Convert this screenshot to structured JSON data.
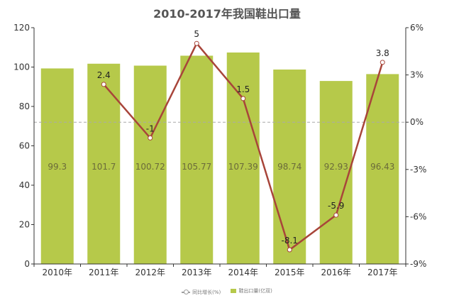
{
  "chart_data": {
    "type": "bar",
    "title": "2010-2017年我国鞋出口量",
    "categories": [
      "2010年",
      "2011年",
      "2012年",
      "2013年",
      "2014年",
      "2015年",
      "2016年",
      "2017年"
    ],
    "series": [
      {
        "name": "鞋出口量(亿双)",
        "type": "bar",
        "axis": "left",
        "color": "#b6c94a",
        "values": [
          99.3,
          101.7,
          100.72,
          105.77,
          107.39,
          98.74,
          92.93,
          96.43
        ],
        "labels": [
          "99.3",
          "101.7",
          "100.72",
          "105.77",
          "107.39",
          "98.74",
          "92.93",
          "96.43"
        ]
      },
      {
        "name": "同比增长(%)",
        "type": "line",
        "axis": "right",
        "color": "#a8453a",
        "values": [
          null,
          2.4,
          -1,
          5,
          1.5,
          -8.1,
          -5.9,
          3.8
        ],
        "labels": [
          "",
          "2.4",
          "-1",
          "5",
          "1.5",
          "-8.1",
          "-5.9",
          "3.8"
        ]
      }
    ],
    "y_left": {
      "min": 0,
      "max": 120,
      "ticks": [
        "0",
        "20",
        "40",
        "60",
        "80",
        "100",
        "120"
      ]
    },
    "y_right": {
      "min": -9,
      "max": 6,
      "ticks": [
        "-9%",
        "-6%",
        "-3%",
        "0%",
        "3%",
        "6%"
      ]
    },
    "grid": false,
    "legend_position": "bottom"
  }
}
